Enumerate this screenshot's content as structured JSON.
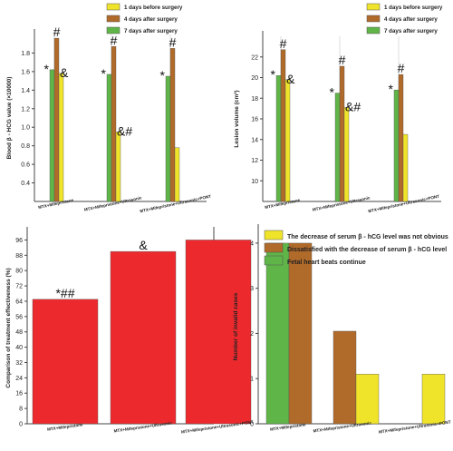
{
  "colors": {
    "yellow": "#f0e42a",
    "brown": "#b06a2a",
    "green": "#5fb548",
    "red": "#ec2a2e",
    "axis": "#444444",
    "guide": "#bbbbbb"
  },
  "chart_data": [
    {
      "type": "bar",
      "ylabel": "Blood β - HCG value (×10000)",
      "ylim": [
        0.2,
        2.0
      ],
      "yticks": [
        "0.4",
        "0.6",
        "0.8",
        "1.0",
        "1.2",
        "1.4",
        "1.6",
        "1.8"
      ],
      "categories": [
        "MTX+Mifepristone",
        "MTX+Mifepristone+Ultrasonic",
        "MTX+Mifepristone+Ultrasonic+PONT"
      ],
      "series": [
        {
          "name": "7 days after surgery",
          "color": "green",
          "values": [
            1.62,
            1.57,
            1.55
          ]
        },
        {
          "name": "4 days after surgery",
          "color": "brown",
          "values": [
            1.96,
            1.87,
            1.85
          ]
        },
        {
          "name": "1 days before surgery",
          "color": "yellow",
          "values": [
            1.58,
            0.95,
            0.78
          ]
        }
      ],
      "legend": [
        "1 days before surgery",
        "4 days after surgery",
        "7 days after surgery"
      ],
      "legend_placement": "top-right",
      "annotations": [
        {
          "text": "*",
          "category": 0,
          "series": 0
        },
        {
          "text": "#",
          "category": 0,
          "series": 1
        },
        {
          "text": "&",
          "category": 0,
          "series": 2
        },
        {
          "text": "*",
          "category": 1,
          "series": 0
        },
        {
          "text": "#",
          "category": 1,
          "series": 1
        },
        {
          "text": "&#",
          "category": 1,
          "series": 2
        },
        {
          "text": "*",
          "category": 2,
          "series": 0
        },
        {
          "text": "#",
          "category": 2,
          "series": 1
        }
      ]
    },
    {
      "type": "bar",
      "ylabel": "Lesion volume (cm³)",
      "ylim": [
        8,
        24
      ],
      "yticks": [
        "10",
        "12",
        "14",
        "16",
        "18",
        "20",
        "22"
      ],
      "categories": [
        "MTX+Mifepristone",
        "MTX+Mifepristone+Ultrasonic",
        "MTX+Mifepristone+Ultrasonic+PONT"
      ],
      "series": [
        {
          "name": "7 days after surgery",
          "color": "green",
          "values": [
            20.2,
            18.5,
            18.8
          ]
        },
        {
          "name": "4 days after surgery",
          "color": "brown",
          "values": [
            22.7,
            21.1,
            20.3
          ]
        },
        {
          "name": "1 days before surgery",
          "color": "yellow",
          "values": [
            19.8,
            17.1,
            14.5
          ]
        }
      ],
      "legend": [
        "1 days before surgery",
        "4 days after surgery",
        "7 days after surgery"
      ],
      "legend_placement": "top-right",
      "annotations": [
        {
          "text": "*",
          "category": 0,
          "series": 0
        },
        {
          "text": "#",
          "category": 0,
          "series": 1
        },
        {
          "text": "&",
          "category": 0,
          "series": 2
        },
        {
          "text": "*",
          "category": 1,
          "series": 0
        },
        {
          "text": "#",
          "category": 1,
          "series": 1
        },
        {
          "text": "&#",
          "category": 1,
          "series": 2
        },
        {
          "text": "*",
          "category": 2,
          "series": 0
        },
        {
          "text": "#",
          "category": 2,
          "series": 1
        }
      ]
    },
    {
      "type": "bar",
      "ylabel": "Comparison of treatment effectiveness (%)",
      "ylim": [
        0,
        100
      ],
      "yticks": [
        "0",
        "8",
        "16",
        "24",
        "32",
        "40",
        "48",
        "56",
        "64",
        "72",
        "80",
        "88",
        "96"
      ],
      "categories": [
        "MTX+Mifepristone",
        "MTX+Mifepristone+Ultrasonic",
        "MTX+Mifepristone+Ultrasonic+PONT"
      ],
      "series": [
        {
          "color": "red",
          "values": [
            65,
            90,
            96
          ]
        }
      ],
      "annotations": [
        {
          "text": "*##",
          "category": 0,
          "series": 0
        },
        {
          "text": "&",
          "category": 1,
          "series": 0
        }
      ]
    },
    {
      "type": "bar",
      "ylabel": "Number of invalid cases",
      "ylim": [
        0,
        4.3
      ],
      "yticks": [
        "0",
        "1",
        "2",
        "3",
        "4"
      ],
      "categories": [
        "MTX+Mifepristone",
        "MTX+Mifepristone+Ultrasonic",
        "MTX+Mifepristone+Ultrasonic+PONT"
      ],
      "series": [
        {
          "name": "Fetal heart beats continue",
          "color": "green",
          "values": [
            4,
            0,
            0
          ]
        },
        {
          "name": "Dissatisfied with the decrease of serum β - hCG level",
          "color": "brown",
          "values": [
            4,
            2.05,
            0
          ]
        },
        {
          "name": "The decrease of serum β - hCG level was not obvious",
          "color": "yellow",
          "values": [
            0,
            1.1,
            1.1
          ]
        }
      ],
      "legend": [
        "The decrease of serum β - hCG level was not obvious",
        "Dissatisfied with the decrease of serum β - hCG level",
        "Fetal heart beats continue"
      ],
      "legend_placement": "top"
    }
  ]
}
